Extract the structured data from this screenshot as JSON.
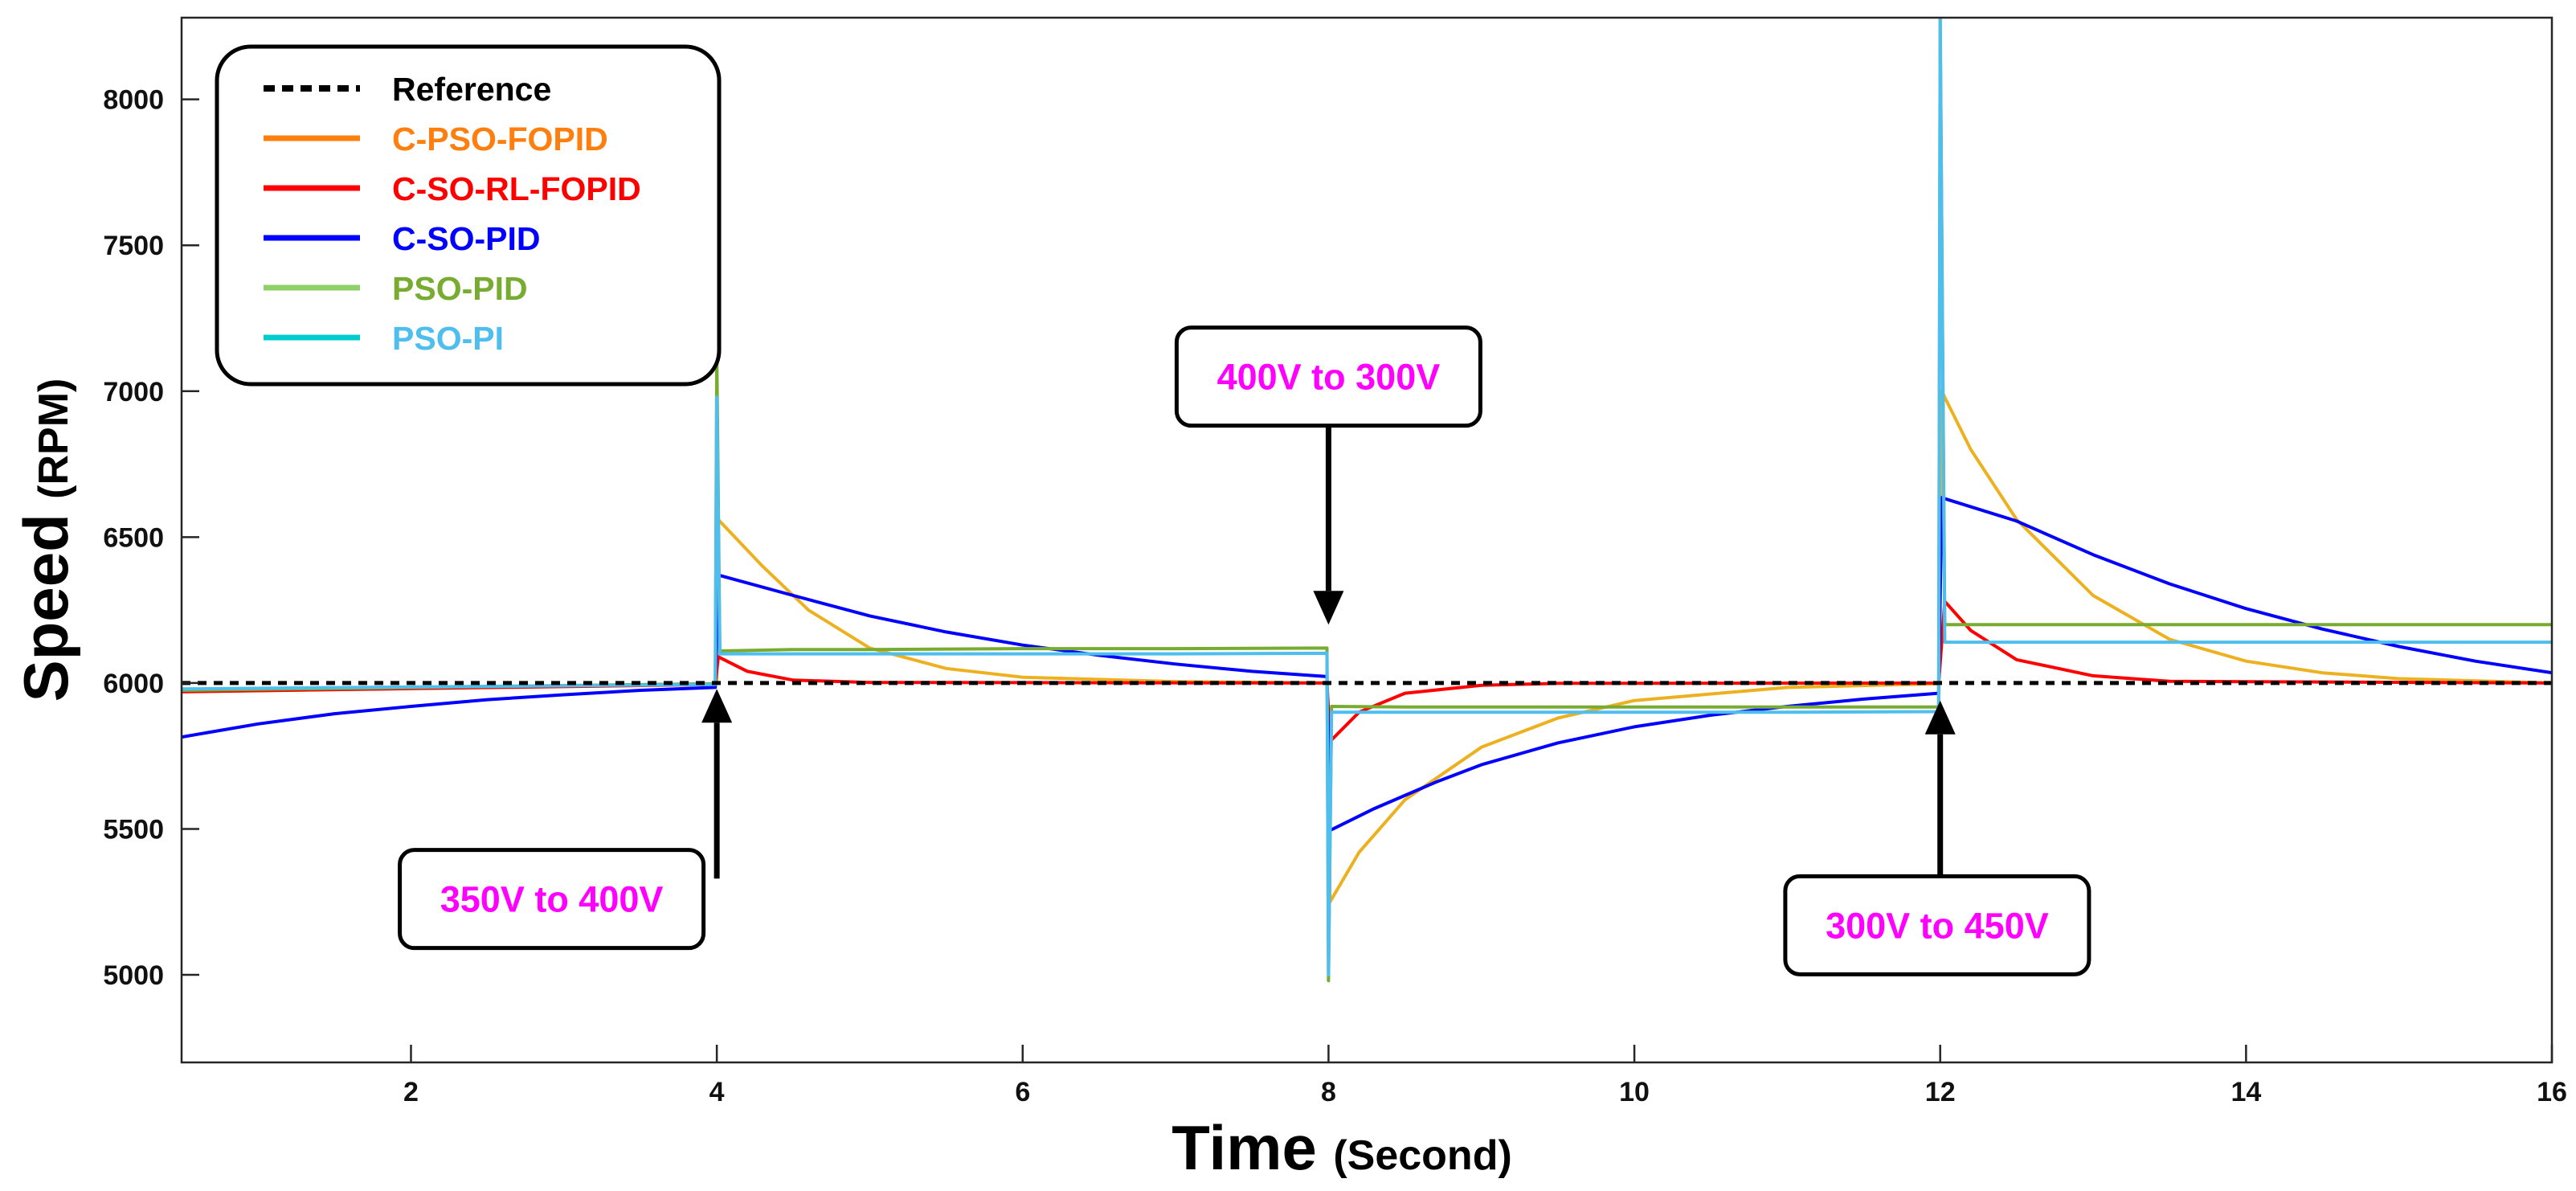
{
  "chart_data": {
    "type": "line",
    "title": "",
    "xlabel": "Time",
    "xlabel_unit": "(Second)",
    "ylabel": "Speed",
    "ylabel_unit": "(RPM)",
    "xlim": [
      0.5,
      16
    ],
    "ylim": [
      4700,
      8280
    ],
    "x_ticks": [
      2,
      4,
      6,
      8,
      10,
      12,
      14,
      16
    ],
    "y_ticks": [
      5000,
      5500,
      6000,
      6500,
      7000,
      7500,
      8000
    ],
    "grid": false,
    "legend_position": "top-left",
    "series": [
      {
        "name": "Reference",
        "color": "#000000",
        "style": "dotted",
        "points": [
          [
            0.5,
            6000
          ],
          [
            16,
            6000
          ]
        ]
      },
      {
        "name": "C-PSO-FOPID",
        "color": "#edb120",
        "legend_color": "#ff7f0e",
        "label_color": "#ff7f0e",
        "style": "solid",
        "points": [
          [
            0.5,
            5970
          ],
          [
            3.99,
            5997
          ],
          [
            4.0,
            6000
          ],
          [
            4.01,
            6560
          ],
          [
            4.3,
            6400
          ],
          [
            4.6,
            6250
          ],
          [
            5.0,
            6120
          ],
          [
            5.5,
            6050
          ],
          [
            6.0,
            6020
          ],
          [
            7.0,
            6005
          ],
          [
            7.99,
            6000
          ],
          [
            8.01,
            5250
          ],
          [
            8.2,
            5420
          ],
          [
            8.5,
            5600
          ],
          [
            9.0,
            5780
          ],
          [
            9.5,
            5880
          ],
          [
            10.0,
            5940
          ],
          [
            11.0,
            5985
          ],
          [
            11.99,
            5998
          ],
          [
            12.01,
            7000
          ],
          [
            12.2,
            6800
          ],
          [
            12.5,
            6560
          ],
          [
            13.0,
            6300
          ],
          [
            13.5,
            6150
          ],
          [
            14.0,
            6075
          ],
          [
            14.5,
            6035
          ],
          [
            15.0,
            6015
          ],
          [
            16.0,
            6000
          ]
        ]
      },
      {
        "name": "C-SO-RL-FOPID",
        "color": "#ff0000",
        "legend_color": "#ff0000",
        "label_color": "#ff0000",
        "style": "solid",
        "points": [
          [
            0.5,
            5970
          ],
          [
            3.99,
            5995
          ],
          [
            4.01,
            6090
          ],
          [
            4.2,
            6040
          ],
          [
            4.5,
            6010
          ],
          [
            5.0,
            6002
          ],
          [
            7.99,
            6000
          ],
          [
            8.01,
            5800
          ],
          [
            8.2,
            5900
          ],
          [
            8.5,
            5965
          ],
          [
            9.0,
            5992
          ],
          [
            9.5,
            5999
          ],
          [
            11.99,
            6000
          ],
          [
            12.03,
            6280
          ],
          [
            12.2,
            6180
          ],
          [
            12.5,
            6080
          ],
          [
            13.0,
            6025
          ],
          [
            13.5,
            6006
          ],
          [
            16.0,
            6000
          ]
        ]
      },
      {
        "name": "C-SO-PID",
        "color": "#0000ff",
        "legend_color": "#0000ff",
        "label_color": "#0000ff",
        "style": "solid",
        "points": [
          [
            0.5,
            5815
          ],
          [
            1.0,
            5860
          ],
          [
            1.5,
            5895
          ],
          [
            2.0,
            5920
          ],
          [
            2.5,
            5943
          ],
          [
            3.0,
            5960
          ],
          [
            3.5,
            5975
          ],
          [
            3.99,
            5985
          ],
          [
            4.01,
            6370
          ],
          [
            4.5,
            6300
          ],
          [
            5.0,
            6230
          ],
          [
            5.5,
            6175
          ],
          [
            6.0,
            6130
          ],
          [
            6.5,
            6095
          ],
          [
            7.0,
            6065
          ],
          [
            7.5,
            6040
          ],
          [
            7.99,
            6022
          ],
          [
            8.01,
            5495
          ],
          [
            8.3,
            5570
          ],
          [
            8.7,
            5660
          ],
          [
            9.0,
            5720
          ],
          [
            9.5,
            5795
          ],
          [
            10.0,
            5850
          ],
          [
            10.5,
            5890
          ],
          [
            11.0,
            5920
          ],
          [
            11.5,
            5945
          ],
          [
            11.99,
            5965
          ],
          [
            12.01,
            6635
          ],
          [
            12.5,
            6555
          ],
          [
            13.0,
            6440
          ],
          [
            13.5,
            6340
          ],
          [
            14.0,
            6255
          ],
          [
            14.5,
            6185
          ],
          [
            15.0,
            6125
          ],
          [
            15.5,
            6075
          ],
          [
            16.0,
            6035
          ]
        ]
      },
      {
        "name": "PSO-PID",
        "color": "#77ac30",
        "legend_color": "#8fd06a",
        "label_color": "#77ac30",
        "style": "solid",
        "points": [
          [
            0.5,
            5975
          ],
          [
            3.99,
            5998
          ],
          [
            4.0,
            7130
          ],
          [
            4.02,
            6110
          ],
          [
            4.5,
            6115
          ],
          [
            5.0,
            6115
          ],
          [
            6.0,
            6118
          ],
          [
            7.0,
            6118
          ],
          [
            7.99,
            6120
          ],
          [
            8.0,
            4980
          ],
          [
            8.02,
            5920
          ],
          [
            8.5,
            5918
          ],
          [
            9.0,
            5918
          ],
          [
            10.0,
            5918
          ],
          [
            11.0,
            5918
          ],
          [
            11.99,
            5918
          ],
          [
            12.0,
            8280
          ],
          [
            12.03,
            6200
          ],
          [
            12.5,
            6200
          ],
          [
            13.0,
            6200
          ],
          [
            14.0,
            6200
          ],
          [
            15.0,
            6200
          ],
          [
            16.0,
            6200
          ]
        ]
      },
      {
        "name": "PSO-PI",
        "color": "#4dbeee",
        "legend_color": "#00cccc",
        "label_color": "#4dbeee",
        "style": "solid",
        "points": [
          [
            0.5,
            5980
          ],
          [
            3.99,
            5995
          ],
          [
            4.0,
            6980
          ],
          [
            4.02,
            6100
          ],
          [
            4.5,
            6100
          ],
          [
            5.0,
            6100
          ],
          [
            6.0,
            6100
          ],
          [
            7.0,
            6100
          ],
          [
            7.99,
            6102
          ],
          [
            8.0,
            5000
          ],
          [
            8.02,
            5900
          ],
          [
            8.5,
            5900
          ],
          [
            9.0,
            5900
          ],
          [
            10.0,
            5900
          ],
          [
            11.0,
            5900
          ],
          [
            11.99,
            5902
          ],
          [
            12.0,
            8280
          ],
          [
            12.03,
            6140
          ],
          [
            12.5,
            6140
          ],
          [
            13.0,
            6140
          ],
          [
            14.0,
            6140
          ],
          [
            15.0,
            6140
          ],
          [
            16.0,
            6140
          ]
        ]
      }
    ],
    "annotations": [
      {
        "text": "350V to 400V",
        "arrow_x": 4.0,
        "arrow_tip_y": 5980,
        "arrow_tail_y": 5330,
        "box_center_x": 2.92,
        "box_center_y": 5260
      },
      {
        "text": "400V to 300V",
        "arrow_x": 8.0,
        "arrow_tip_y": 6200,
        "arrow_tail_y": 6950,
        "box_center_x": 8.0,
        "box_center_y": 7050
      },
      {
        "text": "300V to 450V",
        "arrow_x": 12.0,
        "arrow_tip_y": 5940,
        "arrow_tail_y": 5220,
        "box_center_x": 11.98,
        "box_center_y": 5170
      }
    ]
  }
}
